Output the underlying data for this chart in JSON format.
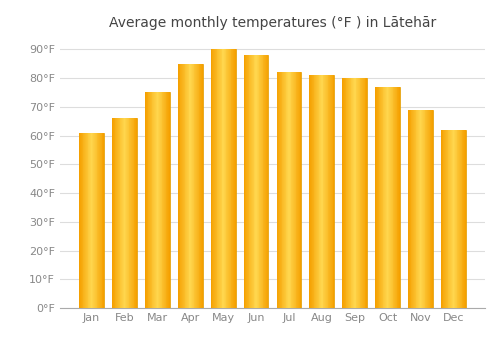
{
  "title": "Average monthly temperatures (°F ) in Lātehār",
  "months": [
    "Jan",
    "Feb",
    "Mar",
    "Apr",
    "May",
    "Jun",
    "Jul",
    "Aug",
    "Sep",
    "Oct",
    "Nov",
    "Dec"
  ],
  "values": [
    61,
    66,
    75,
    85,
    90,
    88,
    82,
    81,
    80,
    77,
    69,
    62
  ],
  "bar_color_left": "#F5A800",
  "bar_color_center": "#FFD040",
  "bar_color_right": "#F5A800",
  "background_color": "#FFFFFF",
  "grid_color": "#DDDDDD",
  "ylim": [
    0,
    95
  ],
  "yticks": [
    0,
    10,
    20,
    30,
    40,
    50,
    60,
    70,
    80,
    90
  ],
  "ytick_labels": [
    "0°F",
    "10°F",
    "20°F",
    "30°F",
    "40°F",
    "50°F",
    "60°F",
    "70°F",
    "80°F",
    "90°F"
  ],
  "title_fontsize": 10,
  "tick_fontsize": 8,
  "title_color": "#444444",
  "tick_color": "#888888",
  "bar_edge_color": "#E09000",
  "bar_width": 0.75
}
